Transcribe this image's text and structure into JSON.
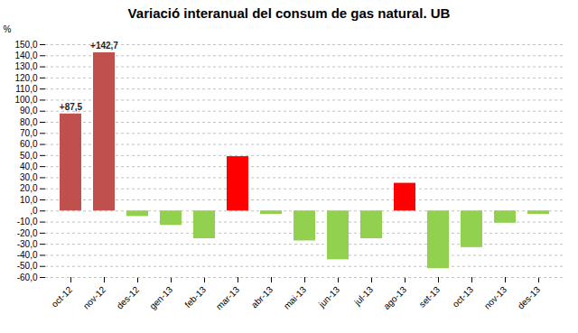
{
  "chart_data": {
    "type": "bar",
    "title": "Variació interanual del consum de gas natural. UB",
    "ylabel": "%",
    "categories": [
      "oct-12",
      "nov-12",
      "des-12",
      "gen-13",
      "feb-13",
      "mar-13",
      "abr-13",
      "mai-13",
      "jun-13",
      "jul-13",
      "ago-13",
      "set-13",
      "oct-13",
      "nov-13",
      "des-13"
    ],
    "values": [
      87.5,
      142.7,
      -5.0,
      -13.0,
      -25.0,
      49.0,
      -3.0,
      -27.0,
      -44.0,
      -25.0,
      25.0,
      -52.0,
      -33.0,
      -11.0,
      -3.0
    ],
    "colors": [
      "#c0504d",
      "#c0504d",
      "#92d050",
      "#92d050",
      "#92d050",
      "#ff0000",
      "#92d050",
      "#92d050",
      "#92d050",
      "#92d050",
      "#ff0000",
      "#92d050",
      "#92d050",
      "#92d050",
      "#92d050"
    ],
    "annotations": [
      {
        "category": "oct-12",
        "text": "+87,5"
      },
      {
        "category": "nov-12",
        "text": "+142,7"
      }
    ],
    "ylim": [
      -60,
      150
    ],
    "yticks": [
      {
        "value": -60,
        "label": "-60,0"
      },
      {
        "value": -50,
        "label": "-50,0"
      },
      {
        "value": -40,
        "label": "-40,0"
      },
      {
        "value": -30,
        "label": "-30,0"
      },
      {
        "value": -20,
        "label": "-20,0"
      },
      {
        "value": -10,
        "label": "-10,0"
      },
      {
        "value": 0,
        "label": ",0"
      },
      {
        "value": 10,
        "label": "10,0"
      },
      {
        "value": 20,
        "label": "20,0"
      },
      {
        "value": 30,
        "label": "30,0"
      },
      {
        "value": 40,
        "label": "40,0"
      },
      {
        "value": 50,
        "label": "50,0"
      },
      {
        "value": 60,
        "label": "60,0"
      },
      {
        "value": 70,
        "label": "70,0"
      },
      {
        "value": 80,
        "label": "80,0"
      },
      {
        "value": 90,
        "label": "90,0"
      },
      {
        "value": 100,
        "label": "100,0"
      },
      {
        "value": 110,
        "label": "110,0"
      },
      {
        "value": 120,
        "label": "120,0"
      },
      {
        "value": 130,
        "label": "130,0"
      },
      {
        "value": 140,
        "label": "140,0"
      },
      {
        "value": 150,
        "label": "150,0"
      }
    ],
    "grid": true
  }
}
